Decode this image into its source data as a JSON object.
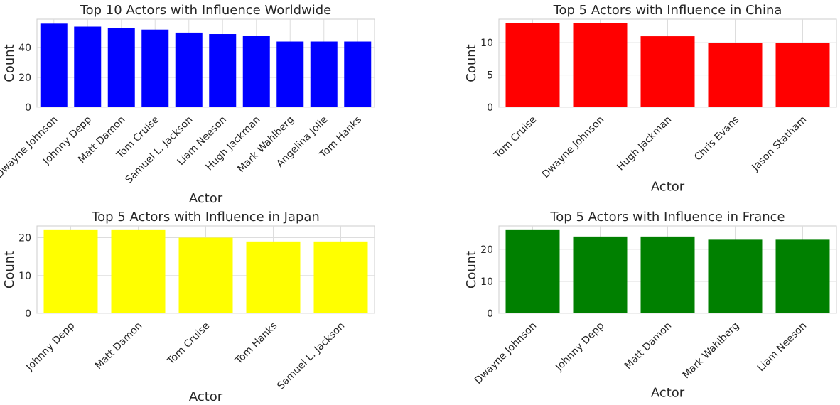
{
  "chart_data": [
    {
      "type": "bar",
      "title": "Top 10 Actors with Influence Worldwide",
      "xlabel": "Actor",
      "ylabel": "Count",
      "categories": [
        "Dwayne Johnson",
        "Johnny Depp",
        "Matt Damon",
        "Tom Cruise",
        "Samuel L. Jackson",
        "Liam Neeson",
        "Hugh Jackman",
        "Mark Wahlberg",
        "Angelina Jolie",
        "Tom Hanks"
      ],
      "values": [
        56,
        54,
        53,
        52,
        50,
        49,
        48,
        44,
        44,
        44
      ],
      "ylim": [
        0,
        59
      ],
      "yticks": [
        0,
        20,
        40
      ],
      "color": "#0000ff",
      "grid": true
    },
    {
      "type": "bar",
      "title": "Top 5 Actors with Influence in China",
      "xlabel": "Actor",
      "ylabel": "Count",
      "categories": [
        "Tom Cruise",
        "Dwayne Johnson",
        "Hugh Jackman",
        "Chris Evans",
        "Jason Statham"
      ],
      "values": [
        13,
        13,
        11,
        10,
        10
      ],
      "ylim": [
        0,
        13.65
      ],
      "yticks": [
        0,
        5,
        10
      ],
      "color": "#ff0000",
      "grid": true
    },
    {
      "type": "bar",
      "title": "Top 5 Actors with Influence in Japan",
      "xlabel": "Actor",
      "ylabel": "Count",
      "categories": [
        "Johnny Depp",
        "Matt Damon",
        "Tom Cruise",
        "Tom Hanks",
        "Samuel L. Jackson"
      ],
      "values": [
        22,
        22,
        20,
        19,
        19
      ],
      "ylim": [
        0,
        23.1
      ],
      "yticks": [
        0,
        10,
        20
      ],
      "color": "#ffff00",
      "grid": true
    },
    {
      "type": "bar",
      "title": "Top 5 Actors with Influence in France",
      "xlabel": "Actor",
      "ylabel": "Count",
      "categories": [
        "Dwayne Johnson",
        "Johnny Depp",
        "Matt Damon",
        "Mark Wahlberg",
        "Liam Neeson"
      ],
      "values": [
        26,
        24,
        24,
        23,
        23
      ],
      "ylim": [
        0,
        27.3
      ],
      "yticks": [
        0,
        10,
        20
      ],
      "color": "#008000",
      "grid": true
    }
  ]
}
